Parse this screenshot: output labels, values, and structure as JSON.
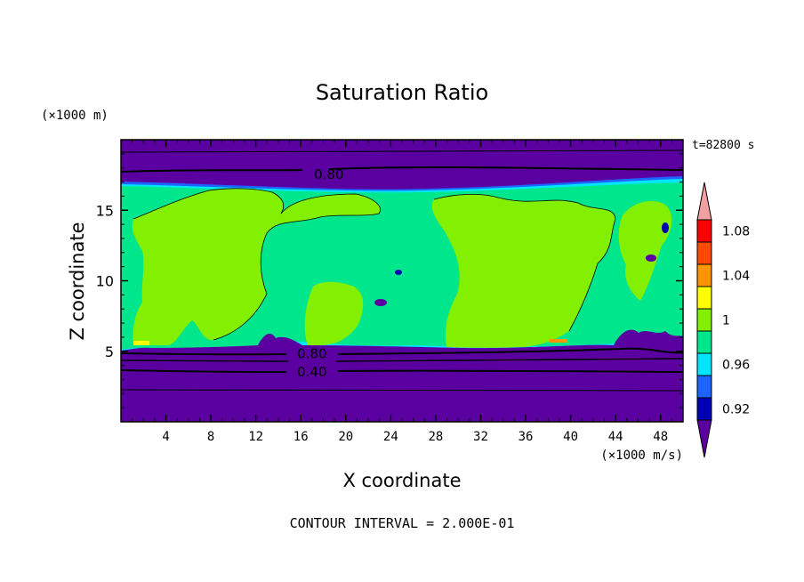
{
  "chart_data": {
    "type": "heatmap",
    "title": "Saturation Ratio",
    "xlabel": "X coordinate",
    "ylabel": "Z coordinate",
    "x_unit": "(×1000 m/s)",
    "y_unit": "(×1000 m)",
    "time_label": "t=82800 s",
    "footer": "CONTOUR INTERVAL = 2.000E-01",
    "xlim": [
      0,
      50
    ],
    "ylim": [
      0,
      20
    ],
    "x_ticks": [
      4,
      8,
      12,
      16,
      20,
      24,
      28,
      32,
      36,
      40,
      44,
      48
    ],
    "x_tick_labels": [
      "4",
      "8",
      "12",
      "16",
      "20",
      "24",
      "28",
      "32",
      "36",
      "40",
      "44",
      "48"
    ],
    "y_ticks": [
      5,
      10,
      15
    ],
    "y_tick_labels": [
      "5",
      "10",
      "15"
    ],
    "contour_labels": [
      {
        "text": "0.80",
        "x": 18.5,
        "z": 17.6
      },
      {
        "text": "0.80",
        "x": 17.0,
        "z": 4.9
      },
      {
        "text": "0.40",
        "x": 17.0,
        "z": 3.6
      }
    ],
    "colorbar": {
      "levels": [
        0.92,
        0.94,
        0.96,
        0.98,
        1.0,
        1.02,
        1.04,
        1.06,
        1.08,
        1.1
      ],
      "colors": [
        "#5a00a0",
        "#0000b4",
        "#1e64ff",
        "#00e6ff",
        "#00e68c",
        "#82f000",
        "#ffff00",
        "#ff9600",
        "#ff4b00",
        "#ff0000",
        "#f0a0a0"
      ],
      "tick_labels": [
        {
          "level": 0.92,
          "label": "0.92"
        },
        {
          "level": 0.96,
          "label": "0.96"
        },
        {
          "level": 1.0,
          "label": "1"
        },
        {
          "level": 1.04,
          "label": "1.04"
        },
        {
          "level": 1.08,
          "label": "1.08"
        }
      ]
    },
    "grid": false,
    "legend": "right colorbar"
  }
}
